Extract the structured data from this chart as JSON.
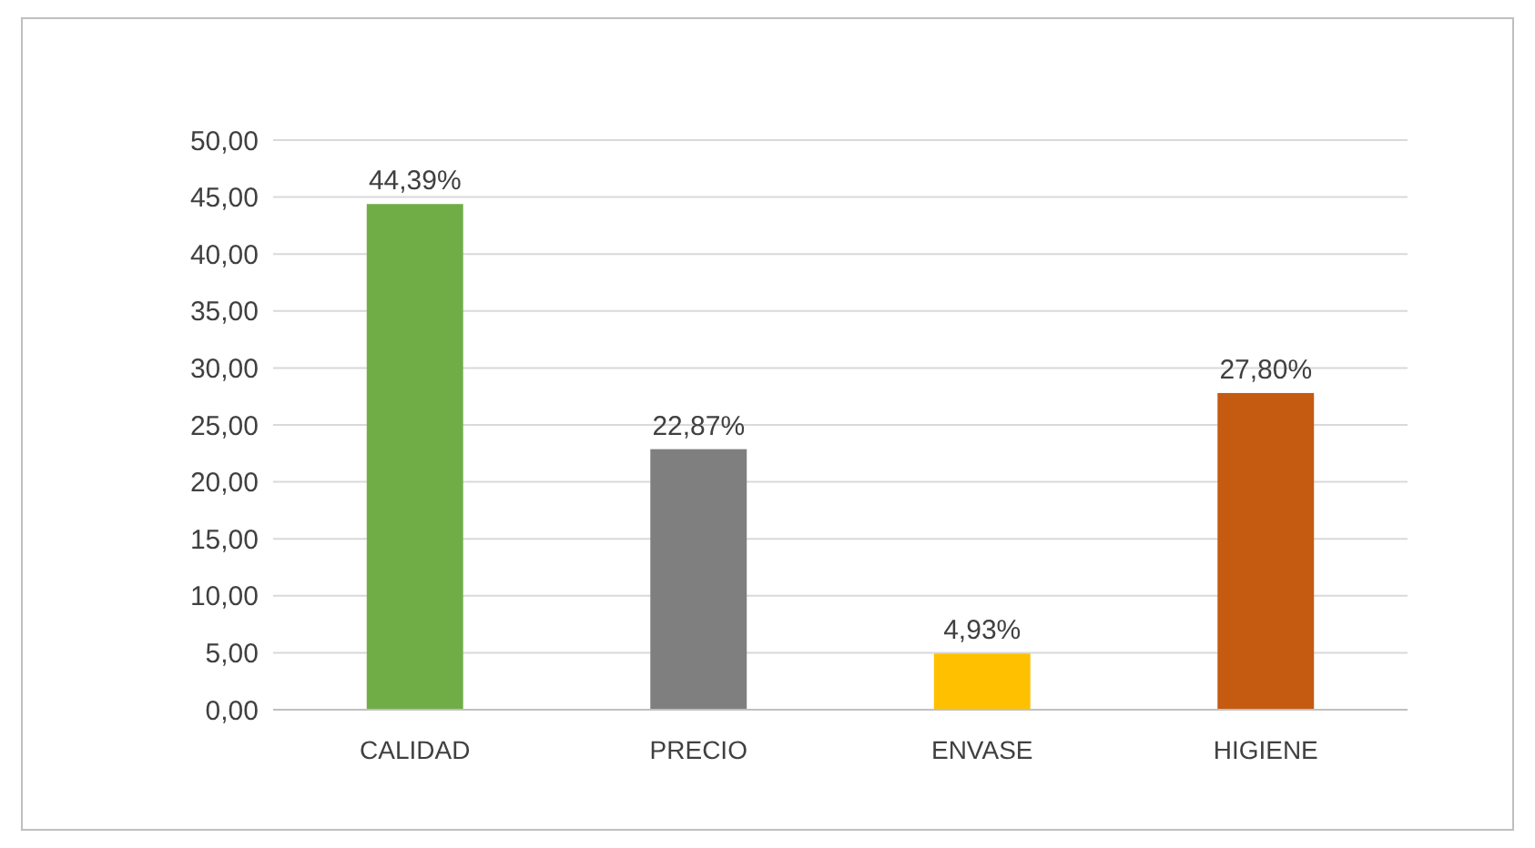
{
  "chart_data": {
    "type": "bar",
    "categories": [
      "CALIDAD",
      "PRECIO",
      "ENVASE",
      "HIGIENE"
    ],
    "values": [
      44.39,
      22.87,
      4.93,
      27.8
    ],
    "colors": [
      "#70ad47",
      "#7f7f7f",
      "#ffc000",
      "#c55a11"
    ],
    "value_labels": [
      "44,39%",
      "22,87%",
      "4,93%",
      "27,80%"
    ],
    "ylim": [
      0,
      50
    ],
    "yticks": [
      {
        "value": 0,
        "label": "0,00"
      },
      {
        "value": 5,
        "label": "5,00"
      },
      {
        "value": 10,
        "label": "10,00"
      },
      {
        "value": 15,
        "label": "15,00"
      },
      {
        "value": 20,
        "label": "20,00"
      },
      {
        "value": 25,
        "label": "25,00"
      },
      {
        "value": 30,
        "label": "30,00"
      },
      {
        "value": 35,
        "label": "35,00"
      },
      {
        "value": 40,
        "label": "40,00"
      },
      {
        "value": 45,
        "label": "45,00"
      },
      {
        "value": 50,
        "label": "50,00"
      }
    ],
    "grid": "y"
  }
}
